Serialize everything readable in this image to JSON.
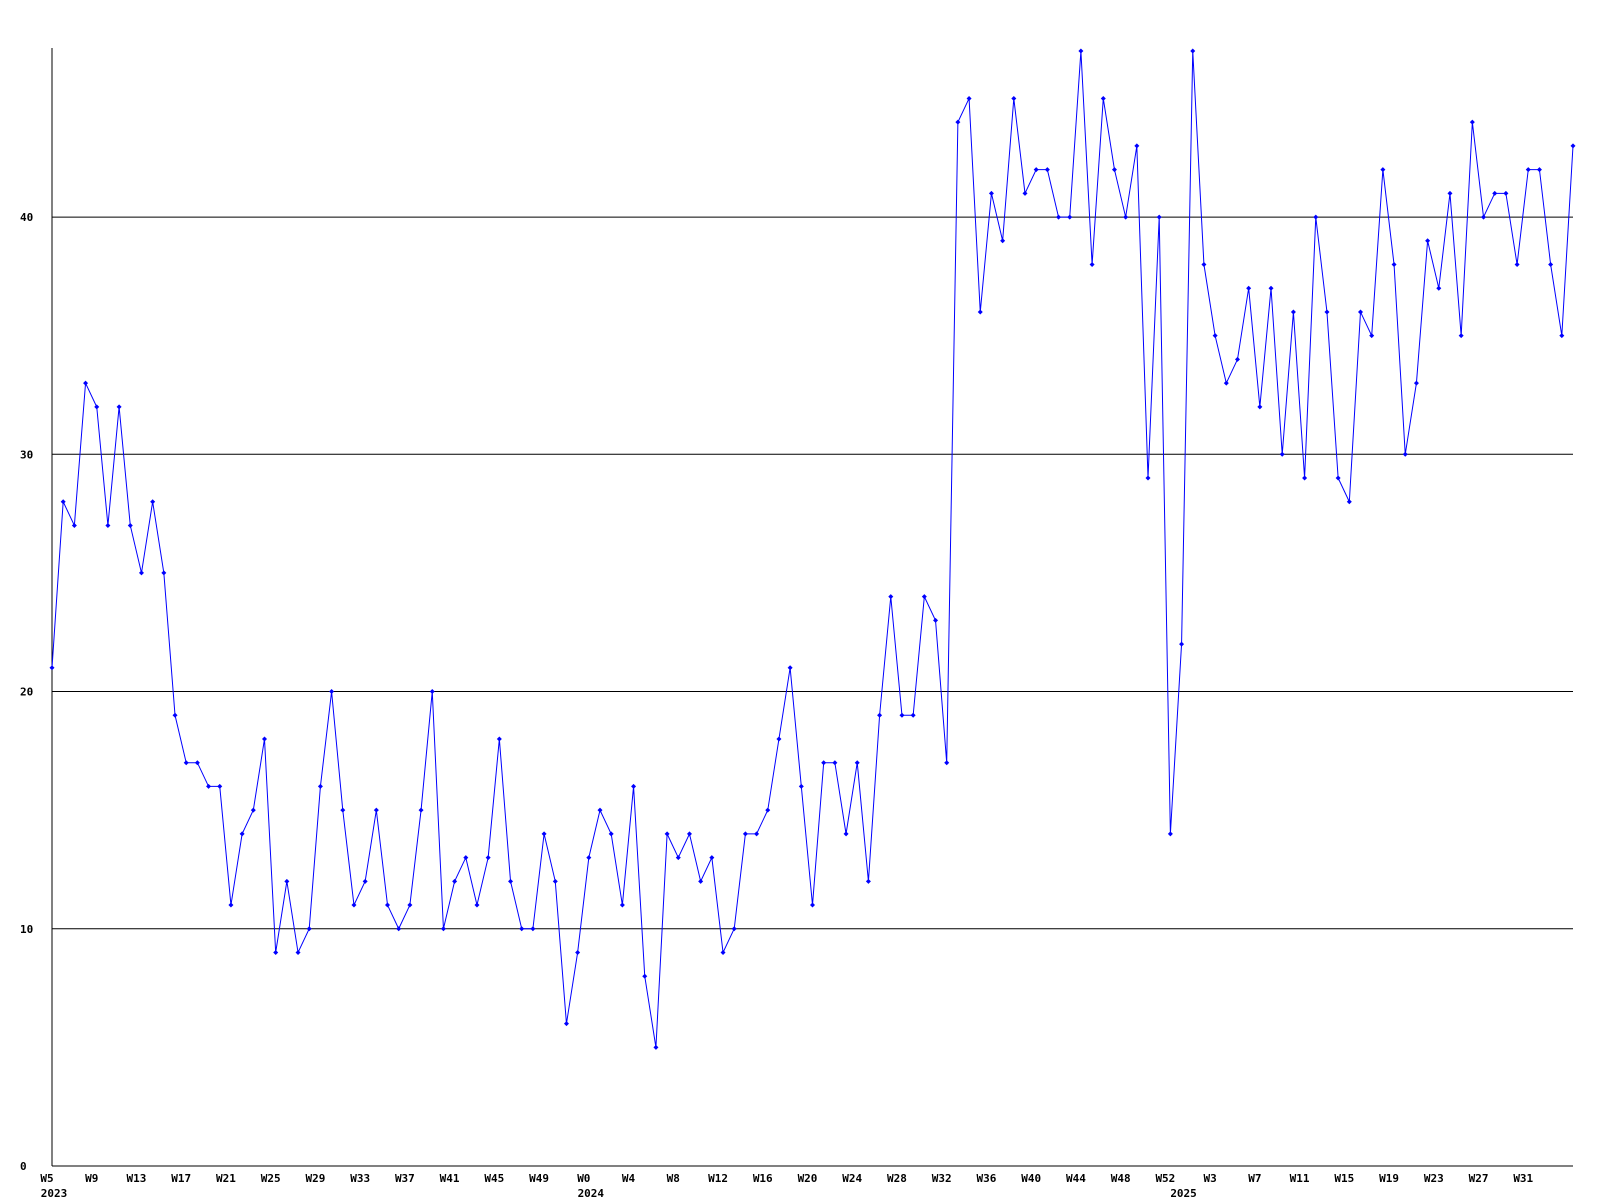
{
  "chart_data": {
    "type": "line",
    "categories": [
      "W5",
      null,
      null,
      null,
      "W9",
      null,
      null,
      null,
      "W13",
      null,
      null,
      null,
      "W17",
      null,
      null,
      null,
      "W21",
      null,
      null,
      null,
      "W25",
      null,
      null,
      null,
      "W29",
      null,
      null,
      null,
      "W33",
      null,
      null,
      null,
      "W37",
      null,
      null,
      null,
      "W41",
      null,
      null,
      null,
      "W45",
      null,
      null,
      null,
      "W49",
      null,
      null,
      null,
      "W0",
      null,
      null,
      null,
      "W4",
      null,
      null,
      null,
      "W8",
      null,
      null,
      null,
      "W12",
      null,
      null,
      null,
      "W16",
      null,
      null,
      null,
      "W20",
      null,
      null,
      null,
      "W24",
      null,
      null,
      null,
      "W28",
      null,
      null,
      null,
      "W32",
      null,
      null,
      null,
      "W36",
      null,
      null,
      null,
      "W40",
      null,
      null,
      null,
      "W44",
      null,
      null,
      null,
      "W48",
      null,
      null,
      null,
      "W52",
      null,
      null,
      null,
      "W3",
      null,
      null,
      null,
      "W7",
      null,
      null,
      null,
      "W11",
      null,
      null,
      null,
      "W15",
      null,
      null,
      null,
      "W19",
      null,
      null,
      null,
      "W23",
      null,
      null,
      null,
      "W27",
      null,
      null,
      null,
      "W31",
      null,
      null,
      null,
      null
    ],
    "years": [
      {
        "at": 0,
        "label": "2023"
      },
      {
        "at": 48,
        "label": "2024"
      },
      {
        "at": 101,
        "label": "2025"
      }
    ],
    "color": "#0000ff",
    "values": [
      21,
      28,
      27,
      33,
      32,
      27,
      32,
      27,
      25,
      28,
      25,
      19,
      17,
      17,
      16,
      16,
      11,
      14,
      15,
      18,
      9,
      12,
      9,
      10,
      16,
      20,
      15,
      11,
      12,
      15,
      11,
      10,
      11,
      15,
      20,
      10,
      12,
      13,
      11,
      13,
      18,
      12,
      10,
      10,
      14,
      12,
      6,
      9,
      13,
      15,
      14,
      11,
      16,
      8,
      5,
      14,
      13,
      14,
      12,
      13,
      9,
      10,
      14,
      14,
      15,
      18,
      21,
      16,
      11,
      17,
      17,
      14,
      17,
      12,
      19,
      24,
      19,
      19,
      24,
      23,
      17,
      44,
      45,
      36,
      41,
      39,
      45,
      41,
      42,
      42,
      40,
      40,
      47,
      38,
      45,
      42,
      40,
      43,
      29,
      40,
      14,
      22,
      47,
      38,
      35,
      33,
      34,
      37,
      32,
      37,
      30,
      36,
      29,
      40,
      36,
      29,
      28,
      36,
      35,
      42,
      38,
      30,
      33,
      39,
      37,
      41,
      35,
      44,
      40,
      41,
      41,
      38,
      42,
      42,
      38,
      35,
      43
    ],
    "ylim": [
      0,
      47
    ],
    "yticks": [
      0,
      10,
      20,
      30,
      40
    ],
    "grid": true
  }
}
